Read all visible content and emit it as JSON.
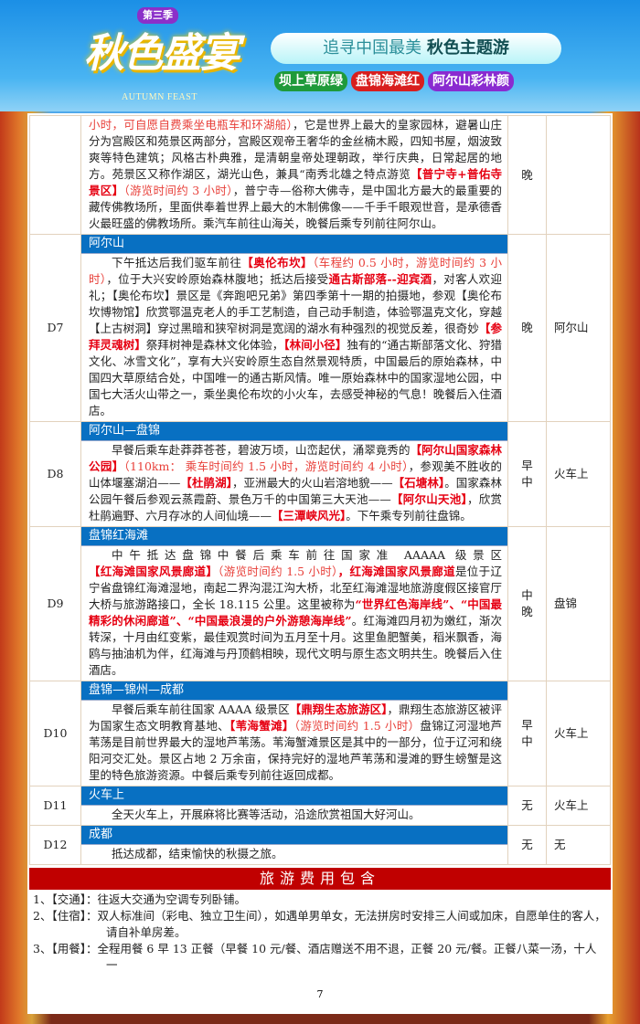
{
  "banner": {
    "season": "第三季",
    "title": "秋色盛宴",
    "subtitle_en": "AUTUMN FEAST",
    "slogan_light": "追寻中国最美",
    "slogan_bold": "秋色主题游",
    "tags": [
      {
        "text": "坝上草原绿",
        "color": "#1f9a3a"
      },
      {
        "text": "盘锦海滩红",
        "color": "#d81e1e"
      },
      {
        "text": "阿尔山彩林颜",
        "color": "#8a2bd0"
      }
    ]
  },
  "colors": {
    "section_blue": "#0870c2",
    "highlight_red": "#e60012",
    "fee_header": "#c00000"
  },
  "itinerary": [
    {
      "day": "",
      "title": "",
      "meals": "晚",
      "hotel": "",
      "indent": false,
      "segments": [
        {
          "t": "小时，可自愿自费乘坐电瓶车和环湖船）",
          "s": "rl"
        },
        {
          "t": "，它是世界上最大的皇家园林，避暑山庄分为宫殿区和苑景区两部分，宫殿区观帝王奢华的金丝楠木殿，四知书屋，烟波致爽等特色建筑；风格古朴典雅，是清朝皇帝处理朝政，举行庆典，日常起居的地方。苑景区又称作湖区，湖光山色，兼具“南秀北雄之特点游览"
        },
        {
          "t": "【普宁寺+普佑寺景区】",
          "s": "r"
        },
        {
          "t": "（游览时间约 3 小时）",
          "s": "rl"
        },
        {
          "t": "，普宁寺—俗称大佛寺，是中国北方最大的最重要的藏传佛教场所，里面供奉着世界上最大的木制佛像——千手千眼观世音，是承德香火最旺盛的佛教场所。乘汽车前往山海关，晚餐后乘专列前往阿尔山。"
        }
      ]
    },
    {
      "day": "D7",
      "title": "阿尔山",
      "meals": "晚",
      "hotel": "阿尔山",
      "indent": true,
      "segments": [
        {
          "t": "下午抵达后我们驱车前往"
        },
        {
          "t": "【奥伦布坎】",
          "s": "r"
        },
        {
          "t": "（车程约 0.5 小时，游览时间约 3 小时）",
          "s": "rl"
        },
        {
          "t": "，位于大兴安岭原始森林腹地；抵达后接受"
        },
        {
          "t": "通古斯部落--迎宾酒",
          "s": "r"
        },
        {
          "t": "，对客人欢迎礼；【奥伦布坎】景区是《奔跑吧兄弟》第四季第十一期的拍摄地，参观【奥伦布坎博物馆】欣赏鄂温克老人的手工艺制造，自己动手制造，体验鄂温克文化，穿越【上古树洞】穿过黑暗和狭窄树洞是宽阔的湖水有种强烈的视觉反差，很奇妙"
        },
        {
          "t": "【参拜灵魂树】",
          "s": "r"
        },
        {
          "t": "祭拜树神是森林文化体验，"
        },
        {
          "t": "【林间小径】",
          "s": "r"
        },
        {
          "t": "独有的“通古斯部落文化、狩猎文化、冰雪文化”，享有大兴安岭原生态自然景观特质，中国最后的原始森林，中国四大草原结合处，中国唯一的通古斯风情。唯一原始森林中的国家湿地公园，中国七大活火山带之一，乘坐奥伦布坎的小火车，去感受神秘的气息！晚餐后入住酒店。"
        }
      ]
    },
    {
      "day": "D8",
      "title": "阿尔山—盘锦",
      "meals": "早\n中",
      "hotel": "火车上",
      "indent": true,
      "segments": [
        {
          "t": "早餐后乘车赴莽莽苍苍，碧波万顷，山峦起伏，涌翠竟秀的"
        },
        {
          "t": "【阿尔山国家森林公园】",
          "s": "r"
        },
        {
          "t": "（110km： 乘车时间约 1.5 小时，游览时间约 4 小时）",
          "s": "rl"
        },
        {
          "t": "，参观美不胜收的山体堰塞湖泊——"
        },
        {
          "t": "【杜鹃湖】",
          "s": "r"
        },
        {
          "t": "，亚洲最大的火山岩溶地貌——"
        },
        {
          "t": "【石塘林】",
          "s": "r"
        },
        {
          "t": "。国家森林公园午餐后参观云蒸霞蔚、景色万千的中国第三大天池——"
        },
        {
          "t": "【阿尔山天池】",
          "s": "r"
        },
        {
          "t": "，欣赏杜鹃遍野、六月存冰的人间仙境——"
        },
        {
          "t": "【三潭峡风光】",
          "s": "r"
        },
        {
          "t": "。下午乘专列前往盘锦。"
        }
      ]
    },
    {
      "day": "D9",
      "title": "盘锦红海滩",
      "meals": "中\n晚",
      "hotel": "盘锦",
      "indent": true,
      "segments": [
        {
          "t": "中午抵达盘锦中餐后乘车前往国家准 AAAAA 级景区"
        },
        {
          "t": "【红海滩国家风景廊道】",
          "s": "r"
        },
        {
          "t": "（游览时间约 1.5 小时）",
          "s": "rl"
        },
        {
          "t": "，红海滩国家风景廊道",
          "s": "r"
        },
        {
          "t": "是位于辽宁省盘锦红海滩湿地，南起二界沟混江沟大桥，北至红海滩湿地旅游度假区接官厅大桥与旅游路接口，全长 18.115 公里。这里被称为"
        },
        {
          "t": "“世界红色海岸线”、“中国最精彩的休闲廊道”、“中国最浪漫的户外游憩海岸线”",
          "s": "r"
        },
        {
          "t": "。红海滩四月初为嫩红，渐次转深，十月由红变紫，最佳观赏时间为五月至十月。这里鱼肥蟹美，稻米飘香，海鸥与抽油机为伴，红海滩与丹顶鹤相映，现代文明与原生态文明共生。晚餐后入住酒店。"
        }
      ]
    },
    {
      "day": "D10",
      "title": "盘锦—锦州—成都",
      "meals": "早\n中",
      "hotel": "火车上",
      "indent": true,
      "segments": [
        {
          "t": "早餐后乘车前往国家 AAAA 级景区"
        },
        {
          "t": "【鼎翔生态旅游区】",
          "s": "r"
        },
        {
          "t": "，鼎翔生态旅游区被评为国家生态文明教育基地、"
        },
        {
          "t": "【苇海蟹滩】",
          "s": "r"
        },
        {
          "t": "（游览时间约 1.5 小时）",
          "s": "rl"
        },
        {
          "t": "盘锦辽河湿地芦苇荡是目前世界最大的湿地芦苇荡。苇海蟹滩景区是其中的一部分，位于辽河和绕阳河交汇处。景区占地 2 万余亩，保持完好的湿地芦苇荡和漫滩的野生螃蟹是这里的特色旅游资源。中餐后乘专列前往返回成都。"
        }
      ]
    },
    {
      "day": "D11",
      "title": "火车上",
      "meals": "无",
      "hotel": "火车上",
      "indent": true,
      "segments": [
        {
          "t": "全天火车上，开展麻将比赛等活动，沿途欣赏祖国大好河山。"
        }
      ]
    },
    {
      "day": "D12",
      "title": "成都",
      "meals": "无",
      "hotel": "无",
      "indent": true,
      "segments": [
        {
          "t": "抵达成都，结束愉快的秋摄之旅。"
        }
      ]
    }
  ],
  "fees": {
    "title": "旅游费用包含",
    "items": [
      "1、【交通】：往返大交通为空调专列卧铺。",
      "2、【住宿】：双人标准间（彩电、独立卫生间），如遇单男单女，无法拼房时安排三人间或加床，自愿单住的客人，请自补单房差。",
      "3、【用餐】：全程用餐 6 早 13 正餐（早餐 10 元/餐、酒店赠送不用不退，正餐 20 元/餐。正餐八菜一汤，十人一"
    ]
  },
  "page_number": "7"
}
